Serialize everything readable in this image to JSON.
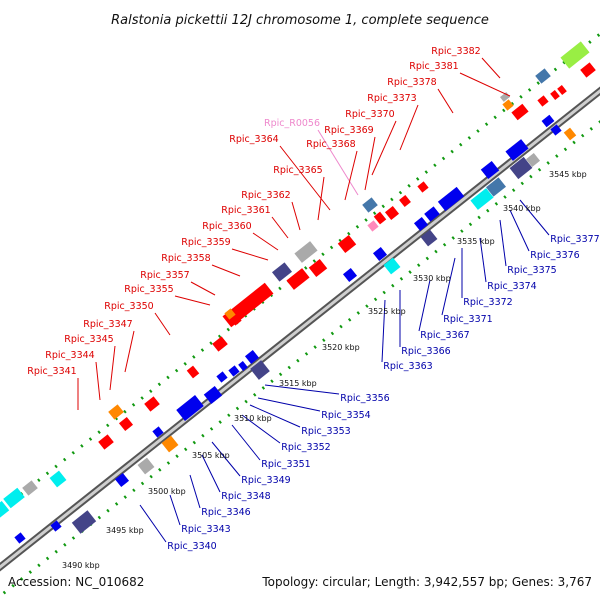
{
  "title": "Ralstonia pickettii 12J chromosome 1, complete sequence",
  "accession": "Accession: NC_010682",
  "summary": "Topology: circular; Length: 3,942,557 bp; Genes: 3,767",
  "ruler": [
    "3490 kbp",
    "3495 kbp",
    "3500 kbp",
    "3505 kbp",
    "3510 kbp",
    "3515 kbp",
    "3520 kbp",
    "3525 kbp",
    "3530 kbp",
    "3535 kbp",
    "3540 kbp",
    "3545 kbp"
  ],
  "colors": {
    "forward_label": "#dd0000",
    "reverse_label": "#0000aa",
    "rna_label": "#ee88cc",
    "backbone": "#888888",
    "ticks": "#119911",
    "gene_red": "#ff0000",
    "gene_blue": "#0000ee",
    "gene_navy": "#444488",
    "gene_cyan": "#00eeee",
    "gene_orange": "#ff8800",
    "gene_steel": "#4477aa",
    "gene_gray": "#aaaaaa",
    "gene_lime": "#99ee44"
  },
  "forward_labels": [
    "Rpic_3382",
    "Rpic_3381",
    "Rpic_3378",
    "Rpic_3373",
    "Rpic_3370",
    "Rpic_3369",
    "Rpic_R0056",
    "Rpic_3368",
    "Rpic_3364",
    "Rpic_3365",
    "Rpic_3362",
    "Rpic_3361",
    "Rpic_3360",
    "Rpic_3359",
    "Rpic_3358",
    "Rpic_3357",
    "Rpic_3355",
    "Rpic_3350",
    "Rpic_3347",
    "Rpic_3345",
    "Rpic_3344",
    "Rpic_3341"
  ],
  "reverse_labels": [
    "Rpic_3377",
    "Rpic_3376",
    "Rpic_3375",
    "Rpic_3374",
    "Rpic_3372",
    "Rpic_3371",
    "Rpic_3367",
    "Rpic_3366",
    "Rpic_3363",
    "Rpic_3356",
    "Rpic_3354",
    "Rpic_3353",
    "Rpic_3352",
    "Rpic_3351",
    "Rpic_3349",
    "Rpic_3348",
    "Rpic_3346",
    "Rpic_3343",
    "Rpic_3340"
  ]
}
